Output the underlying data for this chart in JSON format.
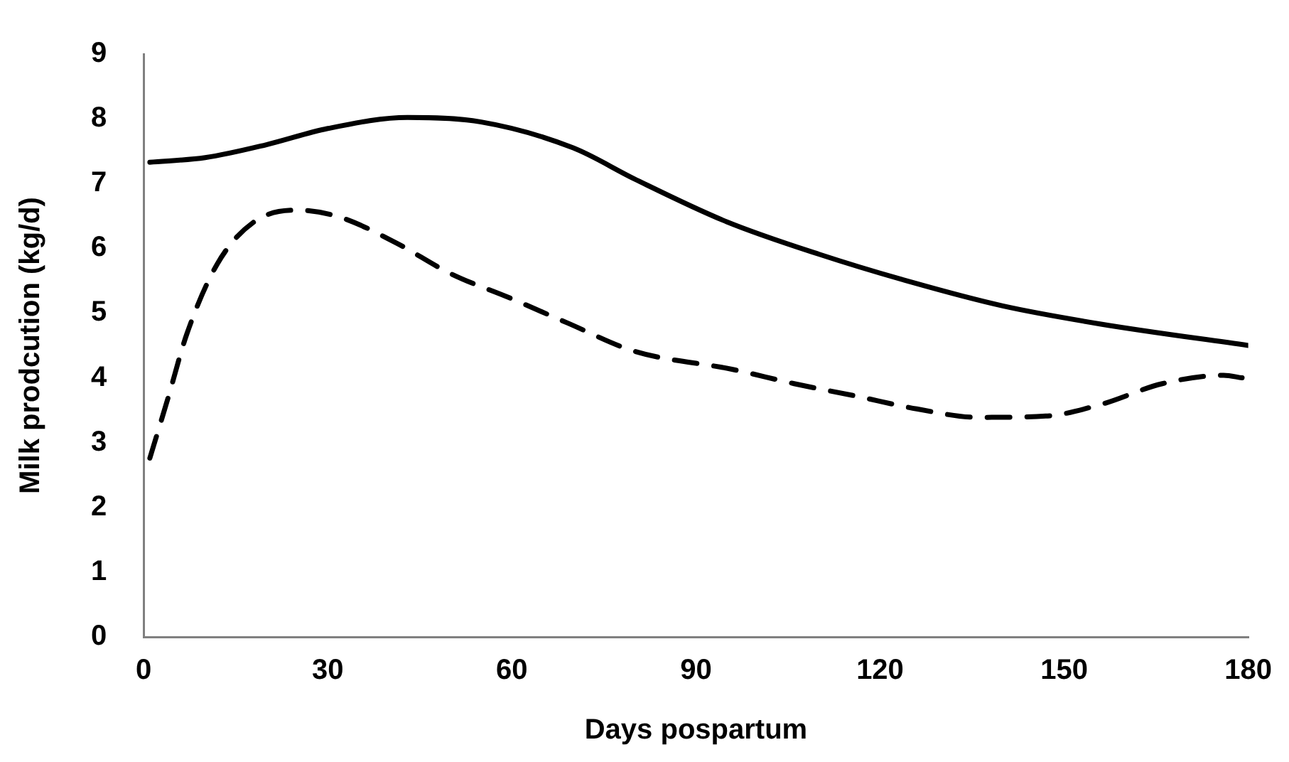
{
  "chart_data": {
    "type": "line",
    "xlabel": "Days pospartum",
    "ylabel": "Milk prodcution (kg/d)",
    "xlim": [
      0,
      180
    ],
    "xticks": [
      0,
      30,
      60,
      90,
      120,
      150,
      180
    ],
    "ylim": [
      0,
      9
    ],
    "yticks": [
      0,
      1,
      2,
      3,
      4,
      5,
      6,
      7,
      8,
      9
    ],
    "grid": false,
    "legend": false,
    "marker": "none",
    "series": [
      {
        "color": "#000000",
        "line_style": "solid",
        "x": [
          1,
          10,
          20,
          30,
          43,
          55,
          70,
          80,
          95,
          110,
          125,
          140,
          156,
          180
        ],
        "values": [
          7.33,
          7.4,
          7.6,
          7.85,
          8.02,
          7.95,
          7.55,
          7.07,
          6.41,
          5.91,
          5.48,
          5.11,
          4.83,
          4.5
        ]
      },
      {
        "color": "#000000",
        "line_style": "dashed",
        "x": [
          1,
          4,
          7,
          12,
          18,
          25,
          32,
          41,
          50,
          60,
          69,
          80,
          96,
          106,
          116,
          126,
          136,
          147,
          156,
          166,
          176,
          179
        ],
        "values": [
          2.76,
          3.7,
          4.67,
          5.76,
          6.41,
          6.59,
          6.48,
          6.09,
          5.61,
          5.22,
          4.85,
          4.41,
          4.13,
          3.91,
          3.72,
          3.52,
          3.39,
          3.41,
          3.59,
          3.91,
          4.04,
          4.0
        ]
      }
    ]
  }
}
